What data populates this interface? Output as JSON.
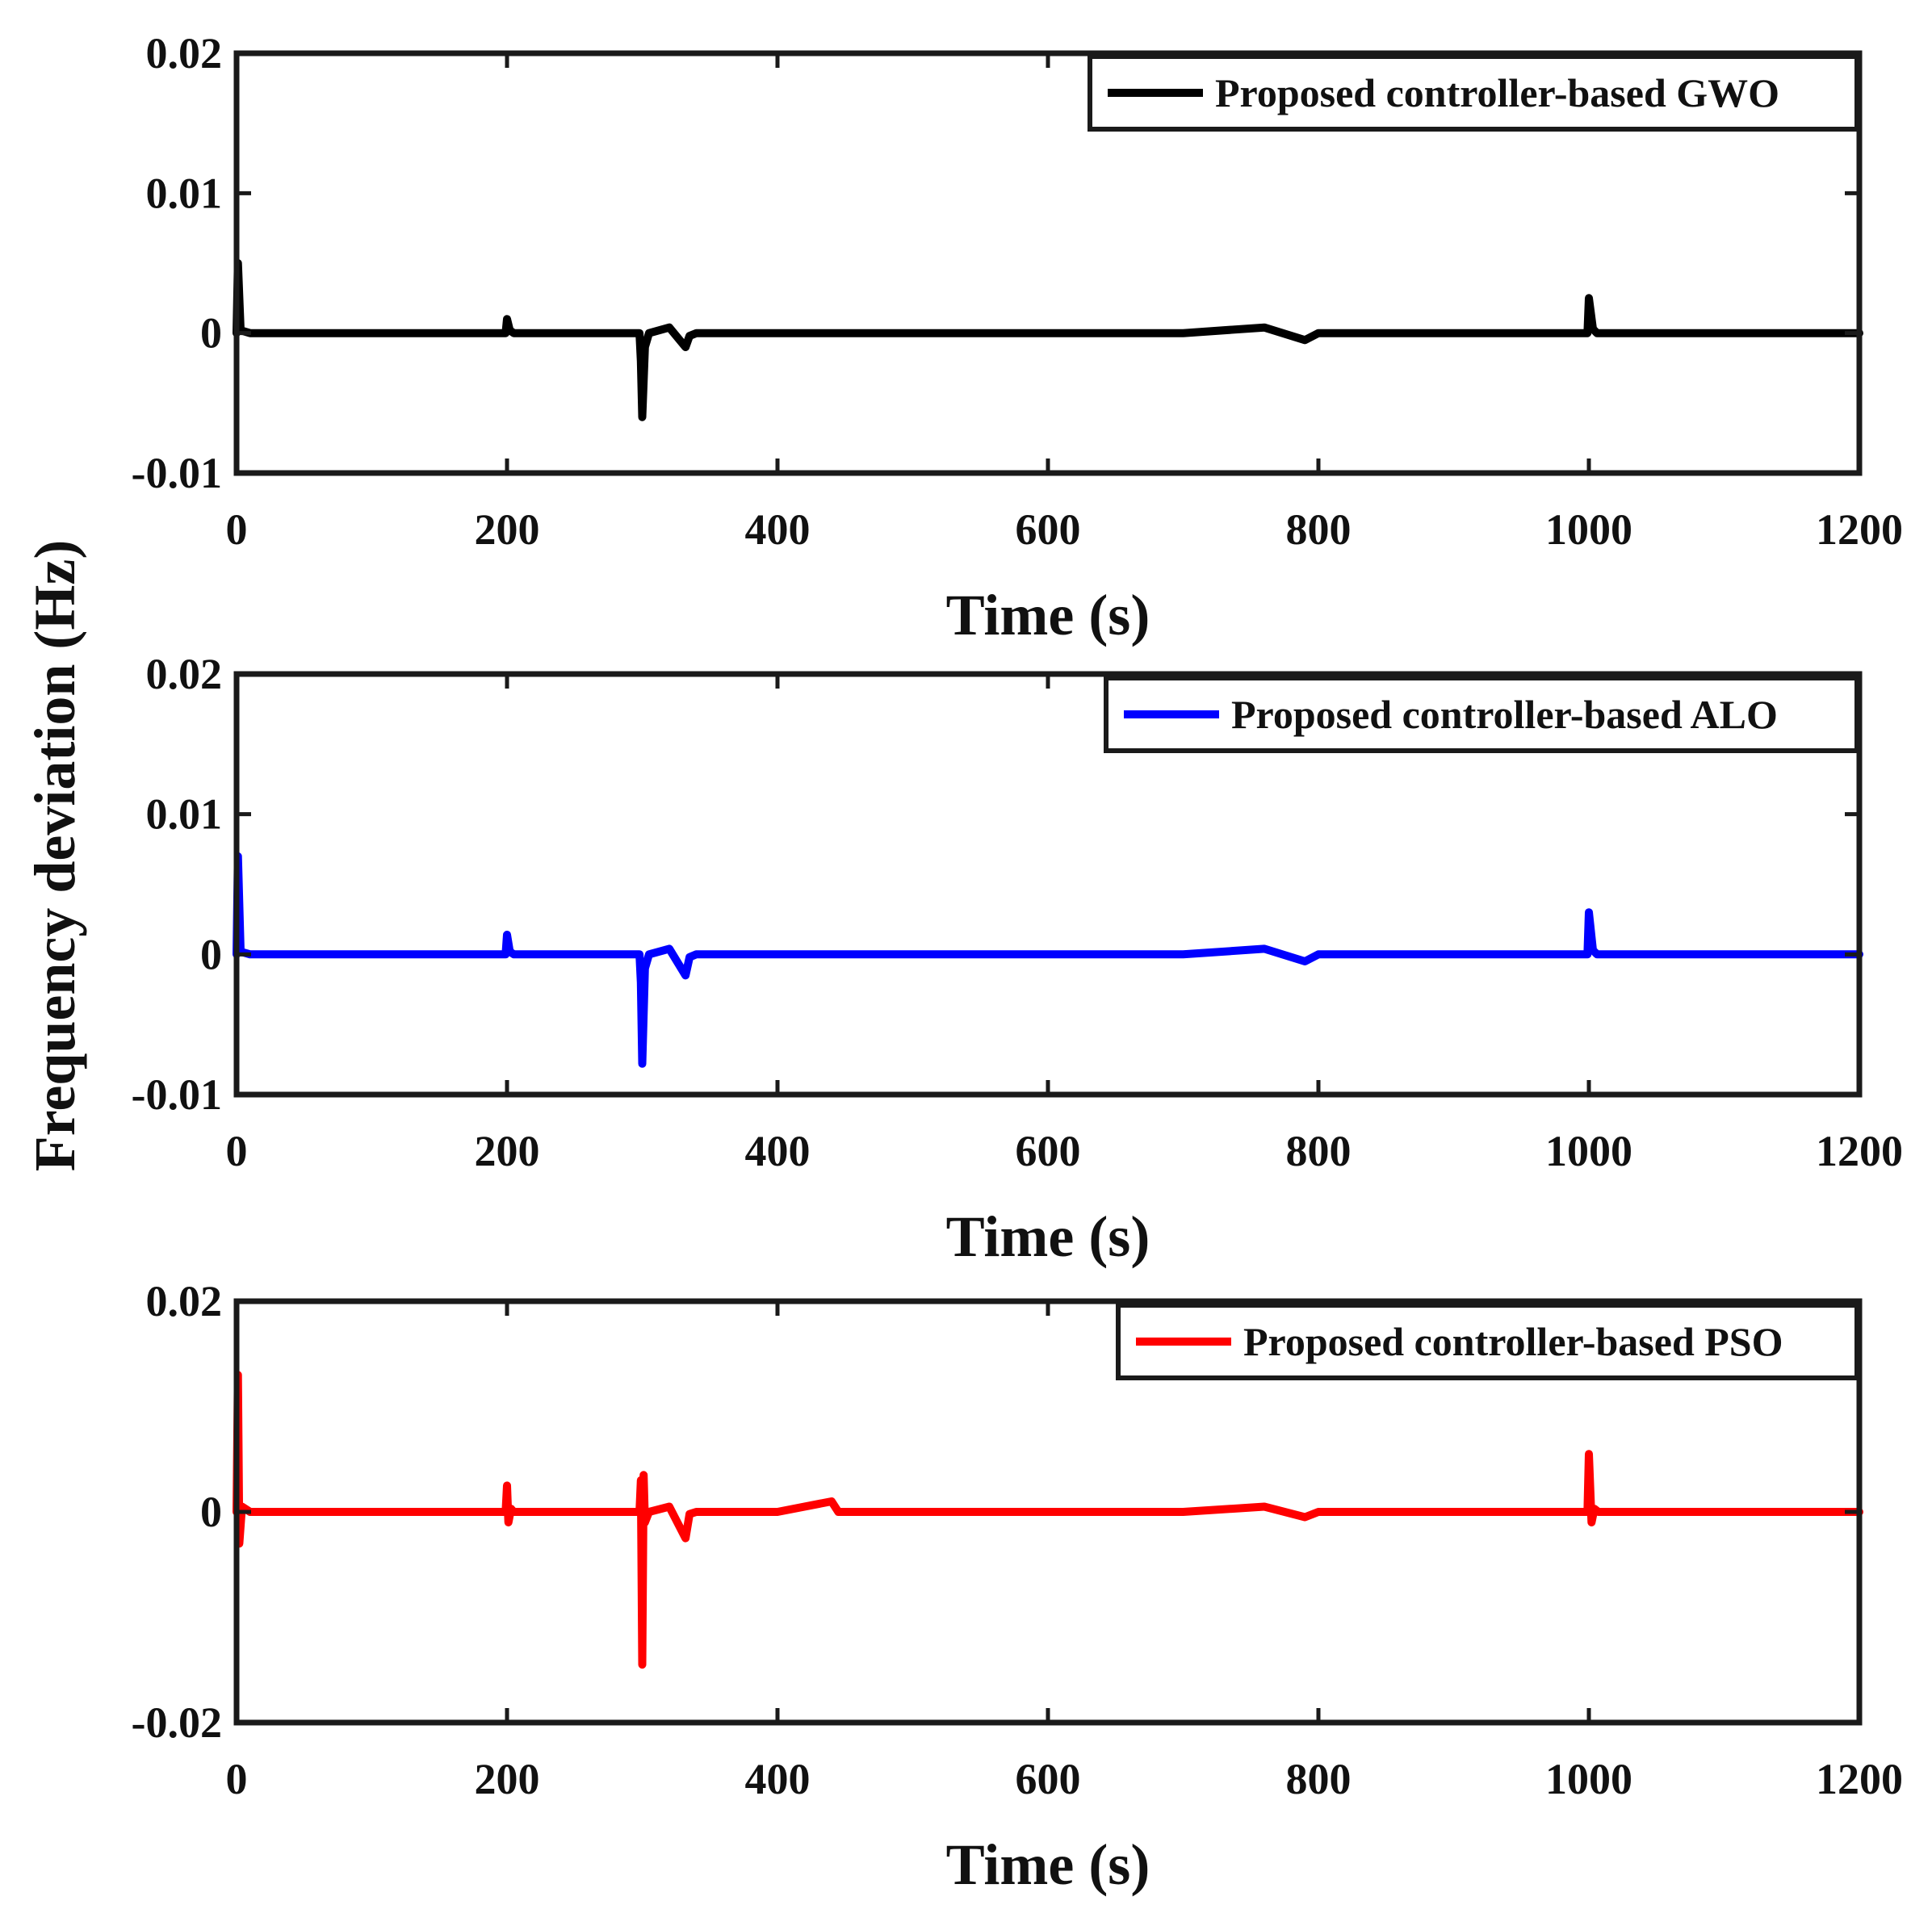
{
  "shared_ylabel": "Frequency deviation (Hz)",
  "chart_data": [
    {
      "type": "line",
      "title": "",
      "xlabel": "Time (s)",
      "ylabel": "Frequency deviation (Hz)",
      "xlim": [
        0,
        1200
      ],
      "ylim": [
        -0.01,
        0.02
      ],
      "xticks": [
        0,
        200,
        400,
        600,
        800,
        1000,
        1200
      ],
      "xtick_labels": [
        "0",
        "200",
        "400",
        "600",
        "800",
        "1000",
        "1200"
      ],
      "yticks": [
        -0.01,
        0,
        0.01,
        0.02
      ],
      "ytick_labels": [
        "-0.01",
        "0",
        "0.01",
        "0.02"
      ],
      "legend_position": "top-right",
      "series": [
        {
          "name": "Proposed controller-based GWO",
          "color": "#000000",
          "x": [
            0,
            1,
            3,
            10,
            50,
            100,
            150,
            199,
            200,
            202,
            205,
            250,
            298,
            299,
            300,
            302,
            305,
            320,
            332,
            335,
            340,
            400,
            500,
            600,
            700,
            760,
            790,
            800,
            900,
            999,
            1000,
            1003,
            1006,
            1100,
            1200
          ],
          "y": [
            0,
            0.005,
            0.0002,
            0,
            0,
            0,
            0,
            0,
            0.001,
            0.0002,
            0,
            0,
            0,
            -0.002,
            -0.006,
            -0.001,
            0,
            0.0004,
            -0.001,
            -0.0002,
            0,
            0,
            0,
            0,
            0,
            0.0004,
            -0.0005,
            0,
            0,
            0,
            0.0025,
            0.0003,
            0,
            0,
            0
          ]
        }
      ]
    },
    {
      "type": "line",
      "title": "",
      "xlabel": "Time (s)",
      "ylabel": "Frequency deviation (Hz)",
      "xlim": [
        0,
        1200
      ],
      "ylim": [
        -0.01,
        0.02
      ],
      "xticks": [
        0,
        200,
        400,
        600,
        800,
        1000,
        1200
      ],
      "xtick_labels": [
        "0",
        "200",
        "400",
        "600",
        "800",
        "1000",
        "1200"
      ],
      "yticks": [
        -0.01,
        0,
        0.01,
        0.02
      ],
      "ytick_labels": [
        "-0.01",
        "0",
        "0.01",
        "0.02"
      ],
      "legend_position": "top-right",
      "series": [
        {
          "name": "Proposed controller-based ALO",
          "color": "#0000ff",
          "x": [
            0,
            1,
            3,
            10,
            50,
            100,
            150,
            199,
            200,
            202,
            205,
            250,
            298,
            299,
            300,
            302,
            305,
            320,
            332,
            335,
            340,
            400,
            500,
            600,
            700,
            760,
            790,
            800,
            900,
            999,
            1000,
            1003,
            1006,
            1100,
            1200
          ],
          "y": [
            0,
            0.007,
            0.0002,
            0,
            0,
            0,
            0,
            0,
            0.0014,
            0.0002,
            0,
            0,
            0,
            -0.002,
            -0.0078,
            -0.001,
            0,
            0.0004,
            -0.0015,
            -0.0002,
            0,
            0,
            0,
            0,
            0,
            0.0004,
            -0.0005,
            0,
            0,
            0,
            0.003,
            0.0003,
            0,
            0,
            0
          ]
        }
      ]
    },
    {
      "type": "line",
      "title": "",
      "xlabel": "Time (s)",
      "ylabel": "Frequency deviation (Hz)",
      "xlim": [
        0,
        1200
      ],
      "ylim": [
        -0.02,
        0.02
      ],
      "xticks": [
        0,
        200,
        400,
        600,
        800,
        1000,
        1200
      ],
      "xtick_labels": [
        "0",
        "200",
        "400",
        "600",
        "800",
        "1000",
        "1200"
      ],
      "yticks": [
        -0.02,
        0,
        0.02
      ],
      "ytick_labels": [
        "-0.02",
        "0",
        "0.02"
      ],
      "legend_position": "top-right",
      "series": [
        {
          "name": "Proposed controller-based PSO",
          "color": "#ff0000",
          "x": [
            0,
            1,
            2,
            4,
            10,
            50,
            100,
            150,
            199,
            200,
            201,
            203,
            205,
            250,
            298,
            299,
            300,
            301,
            302,
            305,
            320,
            332,
            335,
            340,
            400,
            440,
            445,
            500,
            600,
            700,
            760,
            790,
            800,
            900,
            999,
            1000,
            1002,
            1004,
            1007,
            1100,
            1200
          ],
          "y": [
            0,
            0.013,
            -0.003,
            0.0005,
            0,
            0,
            0,
            0,
            0,
            0.0025,
            -0.001,
            0.0003,
            0,
            0,
            0,
            0.003,
            -0.0145,
            0.0035,
            -0.001,
            0,
            0.0005,
            -0.0025,
            -0.0002,
            0,
            0,
            0.001,
            0,
            0,
            0,
            0,
            0.0005,
            -0.0005,
            0,
            0,
            0,
            0.0055,
            -0.001,
            0.0003,
            0,
            0,
            0
          ]
        }
      ]
    }
  ]
}
